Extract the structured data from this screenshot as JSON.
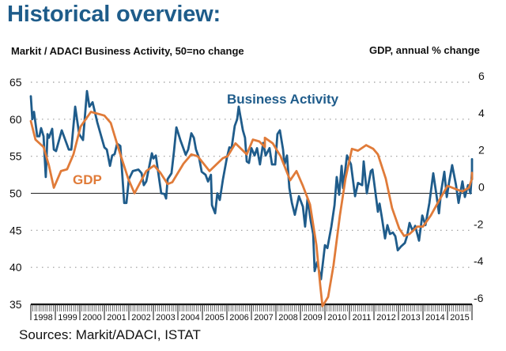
{
  "title": "Historical overview:",
  "subtitle_left": "Markit / ADACI  Business Activity, 50=no change",
  "subtitle_right": "GDP, annual % change",
  "source": "Sources: Markit/ADACI, ISTAT",
  "colors": {
    "title": "#1e5c8a",
    "business_activity": "#1f5c8b",
    "gdp": "#e07b39",
    "grid": "#9a9a9a",
    "baseline": "#222222"
  },
  "chart_data": {
    "type": "line",
    "title": "Historical overview:",
    "xlabel": "",
    "ylabel_left": "Markit / ADACI  Business Activity, 50=no change",
    "ylabel_right": "GDP, annual % change",
    "x_categories": [
      "1998",
      "1999",
      "2000",
      "2001",
      "2002",
      "2003",
      "2004",
      "2005",
      "2006",
      "2007",
      "2008",
      "2009",
      "2010",
      "2011",
      "2012",
      "2013",
      "2014",
      "2015"
    ],
    "xlim": [
      1998.0,
      2016.0
    ],
    "ylim_left": [
      35,
      65
    ],
    "yticks_left": [
      65,
      60,
      55,
      50,
      45,
      40,
      35
    ],
    "ylim_right": [
      -6,
      6
    ],
    "yticks_right": [
      6,
      4,
      2,
      0,
      -2,
      -4,
      -6
    ],
    "grid": "horizontal dotted",
    "reference_line": {
      "left": 50,
      "right": 0
    },
    "annotations": [
      {
        "text": "Business Activity",
        "series": "Business Activity"
      },
      {
        "text": "GDP",
        "series": "GDP"
      }
    ],
    "series": [
      {
        "name": "Business Activity",
        "axis": "left",
        "points": [
          [
            1998.0,
            63.1
          ],
          [
            1998.06,
            60.0
          ],
          [
            1998.13,
            61.0
          ],
          [
            1998.26,
            57.7
          ],
          [
            1998.35,
            57.7
          ],
          [
            1998.42,
            58.8
          ],
          [
            1998.52,
            57.7
          ],
          [
            1998.61,
            52.2
          ],
          [
            1998.68,
            58.0
          ],
          [
            1998.74,
            57.5
          ],
          [
            1998.87,
            58.7
          ],
          [
            1998.94,
            55.9
          ],
          [
            1999.03,
            55.7
          ],
          [
            1999.26,
            58.5
          ],
          [
            1999.55,
            55.9
          ],
          [
            1999.65,
            55.9
          ],
          [
            1999.81,
            61.7
          ],
          [
            1999.97,
            58.0
          ],
          [
            2000.13,
            57.2
          ],
          [
            2000.29,
            63.8
          ],
          [
            2000.39,
            61.7
          ],
          [
            2000.52,
            62.3
          ],
          [
            2000.71,
            59.6
          ],
          [
            2001.0,
            56.2
          ],
          [
            2001.1,
            55.9
          ],
          [
            2001.23,
            53.7
          ],
          [
            2001.32,
            55.1
          ],
          [
            2001.42,
            55.3
          ],
          [
            2001.52,
            56.7
          ],
          [
            2001.65,
            56.4
          ],
          [
            2001.81,
            48.7
          ],
          [
            2001.9,
            48.7
          ],
          [
            2002.0,
            51.9
          ],
          [
            2002.16,
            53.0
          ],
          [
            2002.39,
            53.2
          ],
          [
            2002.52,
            52.7
          ],
          [
            2002.61,
            51.1
          ],
          [
            2002.71,
            51.6
          ],
          [
            2002.94,
            55.4
          ],
          [
            2003.0,
            54.7
          ],
          [
            2003.1,
            55.1
          ],
          [
            2003.19,
            53.0
          ],
          [
            2003.32,
            50.0
          ],
          [
            2003.45,
            49.9
          ],
          [
            2003.52,
            49.3
          ],
          [
            2003.58,
            51.9
          ],
          [
            2003.74,
            52.7
          ],
          [
            2003.84,
            55.6
          ],
          [
            2003.94,
            58.9
          ],
          [
            2004.1,
            57.2
          ],
          [
            2004.32,
            55.2
          ],
          [
            2004.42,
            55.9
          ],
          [
            2004.55,
            58.1
          ],
          [
            2004.65,
            57.5
          ],
          [
            2004.74,
            55.9
          ],
          [
            2004.87,
            54.7
          ],
          [
            2004.97,
            52.9
          ],
          [
            2005.13,
            52.5
          ],
          [
            2005.23,
            51.6
          ],
          [
            2005.35,
            52.5
          ],
          [
            2005.39,
            48.4
          ],
          [
            2005.52,
            47.3
          ],
          [
            2005.61,
            50.0
          ],
          [
            2005.71,
            49.1
          ],
          [
            2005.84,
            51.9
          ],
          [
            2006.0,
            54.8
          ],
          [
            2006.1,
            56.2
          ],
          [
            2006.19,
            56.1
          ],
          [
            2006.32,
            59.1
          ],
          [
            2006.42,
            60.0
          ],
          [
            2006.48,
            61.7
          ],
          [
            2006.65,
            58.5
          ],
          [
            2006.74,
            57.5
          ],
          [
            2006.81,
            54.3
          ],
          [
            2006.9,
            54.1
          ],
          [
            2007.0,
            56.1
          ],
          [
            2007.13,
            55.1
          ],
          [
            2007.23,
            56.1
          ],
          [
            2007.35,
            53.9
          ],
          [
            2007.48,
            56.8
          ],
          [
            2007.58,
            55.1
          ],
          [
            2007.74,
            56.1
          ],
          [
            2007.84,
            53.9
          ],
          [
            2007.97,
            53.9
          ],
          [
            2008.06,
            58.0
          ],
          [
            2008.16,
            58.5
          ],
          [
            2008.29,
            55.9
          ],
          [
            2008.35,
            53.9
          ],
          [
            2008.45,
            55.1
          ],
          [
            2008.55,
            50.7
          ],
          [
            2008.65,
            48.7
          ],
          [
            2008.77,
            47.1
          ],
          [
            2008.94,
            49.6
          ],
          [
            2009.1,
            48.2
          ],
          [
            2009.19,
            45.5
          ],
          [
            2009.29,
            49.3
          ],
          [
            2009.42,
            46.3
          ],
          [
            2009.52,
            44.5
          ],
          [
            2009.58,
            39.5
          ],
          [
            2009.68,
            40.7
          ],
          [
            2009.84,
            38.4
          ],
          [
            2010.0,
            43.0
          ],
          [
            2010.1,
            42.6
          ],
          [
            2010.26,
            45.5
          ],
          [
            2010.39,
            48.4
          ],
          [
            2010.48,
            52.2
          ],
          [
            2010.58,
            49.8
          ],
          [
            2010.68,
            53.7
          ],
          [
            2010.74,
            50.7
          ],
          [
            2010.9,
            55.1
          ],
          [
            2011.06,
            53.9
          ],
          [
            2011.23,
            49.6
          ],
          [
            2011.35,
            51.4
          ],
          [
            2011.52,
            51.1
          ],
          [
            2011.58,
            54.3
          ],
          [
            2011.71,
            50.0
          ],
          [
            2011.87,
            53.0
          ],
          [
            2011.94,
            53.2
          ],
          [
            2012.03,
            50.9
          ],
          [
            2012.16,
            47.5
          ],
          [
            2012.23,
            48.6
          ],
          [
            2012.32,
            46.8
          ],
          [
            2012.45,
            43.9
          ],
          [
            2012.55,
            45.7
          ],
          [
            2012.65,
            44.5
          ],
          [
            2012.77,
            44.7
          ],
          [
            2012.87,
            44.2
          ],
          [
            2012.97,
            42.3
          ],
          [
            2013.1,
            42.8
          ],
          [
            2013.26,
            43.3
          ],
          [
            2013.35,
            44.2
          ],
          [
            2013.45,
            46.0
          ],
          [
            2013.58,
            44.9
          ],
          [
            2013.68,
            45.6
          ],
          [
            2013.84,
            43.6
          ],
          [
            2013.97,
            47.0
          ],
          [
            2014.1,
            45.7
          ],
          [
            2014.26,
            48.7
          ],
          [
            2014.42,
            52.7
          ],
          [
            2014.55,
            49.8
          ],
          [
            2014.65,
            47.3
          ],
          [
            2014.74,
            50.2
          ],
          [
            2014.87,
            52.9
          ],
          [
            2014.97,
            49.5
          ],
          [
            2015.06,
            51.4
          ],
          [
            2015.19,
            53.8
          ],
          [
            2015.35,
            51.1
          ],
          [
            2015.45,
            48.7
          ],
          [
            2015.61,
            51.6
          ],
          [
            2015.71,
            49.5
          ],
          [
            2015.84,
            51.1
          ],
          [
            2015.94,
            50.0
          ],
          [
            2016.03,
            53.0
          ],
          [
            2016.16,
            52.7
          ],
          [
            2016.23,
            53.4
          ],
          [
            2016.32,
            51.9
          ],
          [
            2016.39,
            54.6
          ],
          [
            2016.48,
            53.4
          ]
        ]
      },
      {
        "name": "GDP",
        "axis": "right",
        "points": [
          [
            1998.0,
            3.9
          ],
          [
            1998.19,
            2.9
          ],
          [
            1998.52,
            2.5
          ],
          [
            1998.74,
            1.5
          ],
          [
            1998.94,
            0.3
          ],
          [
            1999.23,
            1.2
          ],
          [
            1999.48,
            1.3
          ],
          [
            1999.74,
            2.1
          ],
          [
            2000.03,
            3.6
          ],
          [
            2000.45,
            4.4
          ],
          [
            2001.0,
            4.2
          ],
          [
            2001.26,
            3.8
          ],
          [
            2001.58,
            2.4
          ],
          [
            2001.97,
            0.8
          ],
          [
            2002.23,
            0.0
          ],
          [
            2002.71,
            1.2
          ],
          [
            2003.03,
            1.5
          ],
          [
            2003.29,
            1.1
          ],
          [
            2003.58,
            0.5
          ],
          [
            2003.77,
            0.6
          ],
          [
            2004.23,
            1.6
          ],
          [
            2004.55,
            2.1
          ],
          [
            2004.81,
            2.0
          ],
          [
            2005.29,
            1.2
          ],
          [
            2005.84,
            1.9
          ],
          [
            2006.03,
            2.0
          ],
          [
            2006.35,
            2.7
          ],
          [
            2006.81,
            2.1
          ],
          [
            2007.06,
            2.9
          ],
          [
            2007.32,
            2.8
          ],
          [
            2007.55,
            2.5
          ],
          [
            2007.55,
            3.0
          ],
          [
            2007.87,
            2.7
          ],
          [
            2008.19,
            2.0
          ],
          [
            2008.58,
            0.7
          ],
          [
            2008.84,
            1.2
          ],
          [
            2009.1,
            0.4
          ],
          [
            2009.39,
            -0.6
          ],
          [
            2009.65,
            -2.8
          ],
          [
            2009.81,
            -5.0
          ],
          [
            2009.9,
            -6.1
          ],
          [
            2010.13,
            -5.6
          ],
          [
            2010.35,
            -3.9
          ],
          [
            2010.61,
            -1.2
          ],
          [
            2010.84,
            0.8
          ],
          [
            2011.1,
            2.4
          ],
          [
            2011.35,
            2.3
          ],
          [
            2011.68,
            2.6
          ],
          [
            2011.97,
            2.4
          ],
          [
            2012.16,
            2.1
          ],
          [
            2012.48,
            0.8
          ],
          [
            2012.74,
            -0.8
          ],
          [
            2013.03,
            -1.9
          ],
          [
            2013.23,
            -2.3
          ],
          [
            2013.45,
            -2.2
          ],
          [
            2013.77,
            -1.8
          ],
          [
            2014.0,
            -1.8
          ],
          [
            2014.32,
            -1.2
          ],
          [
            2014.65,
            -0.4
          ],
          [
            2015.0,
            0.4
          ],
          [
            2015.39,
            0.2
          ],
          [
            2015.61,
            0.1
          ],
          [
            2015.87,
            0.3
          ],
          [
            2016.1,
            0.8
          ],
          [
            2016.29,
            1.1
          ]
        ]
      }
    ]
  }
}
